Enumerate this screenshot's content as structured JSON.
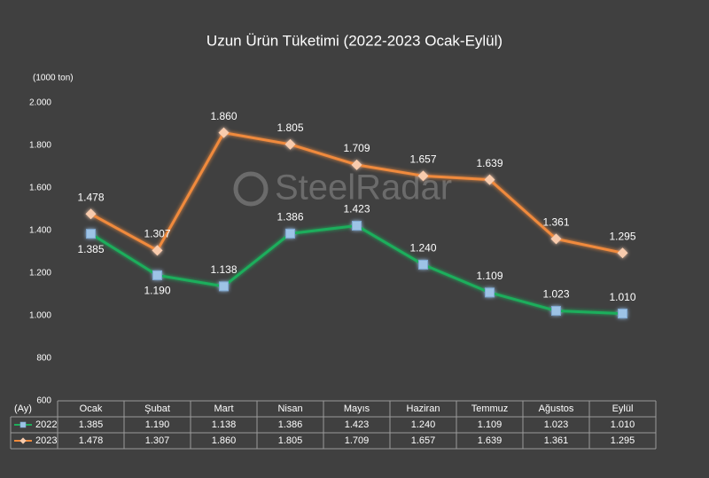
{
  "chart_data": {
    "type": "line",
    "title": "Uzun Ürün Tüketimi (2022-2023 Ocak-Eylül)",
    "y_axis_label": "(1000 ton)",
    "table_header": "(Ay)",
    "watermark": "SteelRadar",
    "categories": [
      "Ocak",
      "Şubat",
      "Mart",
      "Nisan",
      "Mayıs",
      "Haziran",
      "Temmuz",
      "Ağustos",
      "Eylül"
    ],
    "series": [
      {
        "name": "2022",
        "color": "#1fae5b",
        "marker_color": "#9dc3e6",
        "marker": "square",
        "values": [
          1385,
          1190,
          1138,
          1386,
          1423,
          1240,
          1109,
          1023,
          1010
        ],
        "value_labels": [
          "1.385",
          "1.190",
          "1.138",
          "1.386",
          "1.423",
          "1.240",
          "1.109",
          "1.023",
          "1.010"
        ]
      },
      {
        "name": "2023",
        "color": "#f08a3c",
        "marker_color": "#f8cbad",
        "marker": "diamond",
        "values": [
          1478,
          1307,
          1860,
          1805,
          1709,
          1657,
          1639,
          1361,
          1295
        ],
        "value_labels": [
          "1.478",
          "1.307",
          "1.860",
          "1.805",
          "1.709",
          "1.657",
          "1.639",
          "1.361",
          "1.295"
        ]
      }
    ],
    "ylim": [
      600,
      2000
    ],
    "yticks": [
      600,
      800,
      {
        "value": 1000,
        "label": "1.000"
      },
      {
        "value": 1200,
        "label": "1.200"
      },
      {
        "value": 1400,
        "label": "1.400"
      },
      {
        "value": 1600,
        "label": "1.600"
      },
      {
        "value": 1800,
        "label": "1.800"
      },
      {
        "value": 2000,
        "label": "2.000"
      }
    ],
    "grid": false
  }
}
